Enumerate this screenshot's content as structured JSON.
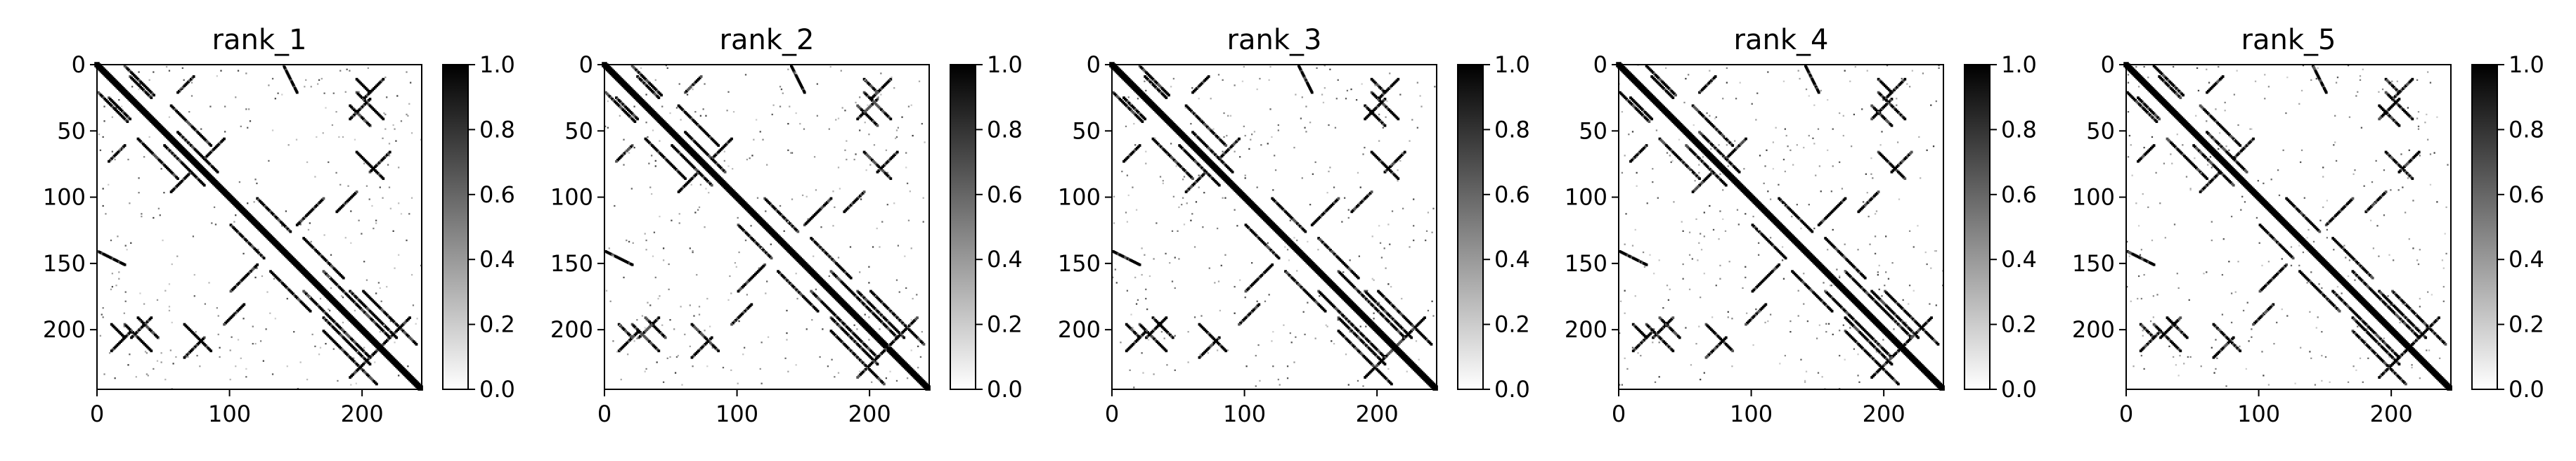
{
  "figure": {
    "panel_count": 5
  },
  "chart_data": [
    {
      "type": "heatmap",
      "title": "rank_1",
      "colormap": "Greys",
      "vmin": 0.0,
      "vmax": 1.0,
      "xlim": [
        0,
        245
      ],
      "ylim": [
        245,
        0
      ],
      "x_ticks": [
        0,
        100,
        200
      ],
      "y_ticks": [
        0,
        50,
        100,
        150,
        200
      ],
      "colorbar_ticks": [
        "0.0",
        "0.2",
        "0.4",
        "0.6",
        "0.8",
        "1.0"
      ],
      "x_tick_labels": [
        "0",
        "100",
        "200"
      ],
      "y_tick_labels": [
        "0",
        "50",
        "100",
        "150",
        "200"
      ],
      "matrix_size": 245,
      "description_of_values": "contact map; diagonal band plus off-diagonal contact segments near (20-40,0-40),(60-90,30-80),(140-160,0-20),(150-210,130-180),(200-240,180-220)"
    },
    {
      "type": "heatmap",
      "title": "rank_2",
      "colormap": "Greys",
      "vmin": 0.0,
      "vmax": 1.0,
      "xlim": [
        0,
        245
      ],
      "ylim": [
        245,
        0
      ],
      "x_ticks": [
        0,
        100,
        200
      ],
      "y_ticks": [
        0,
        50,
        100,
        150,
        200
      ],
      "colorbar_ticks": [
        "0.0",
        "0.2",
        "0.4",
        "0.6",
        "0.8",
        "1.0"
      ],
      "x_tick_labels": [
        "0",
        "100",
        "200"
      ],
      "y_tick_labels": [
        "0",
        "50",
        "100",
        "150",
        "200"
      ],
      "matrix_size": 245
    },
    {
      "type": "heatmap",
      "title": "rank_3",
      "colormap": "Greys",
      "vmin": 0.0,
      "vmax": 1.0,
      "xlim": [
        0,
        245
      ],
      "ylim": [
        245,
        0
      ],
      "x_ticks": [
        0,
        100,
        200
      ],
      "y_ticks": [
        0,
        50,
        100,
        150,
        200
      ],
      "colorbar_ticks": [
        "0.0",
        "0.2",
        "0.4",
        "0.6",
        "0.8",
        "1.0"
      ],
      "x_tick_labels": [
        "0",
        "100",
        "200"
      ],
      "y_tick_labels": [
        "0",
        "50",
        "100",
        "150",
        "200"
      ],
      "matrix_size": 245
    },
    {
      "type": "heatmap",
      "title": "rank_4",
      "colormap": "Greys",
      "vmin": 0.0,
      "vmax": 1.0,
      "xlim": [
        0,
        245
      ],
      "ylim": [
        245,
        0
      ],
      "x_ticks": [
        0,
        100,
        200
      ],
      "y_ticks": [
        0,
        50,
        100,
        150,
        200
      ],
      "colorbar_ticks": [
        "0.0",
        "0.2",
        "0.4",
        "0.6",
        "0.8",
        "1.0"
      ],
      "x_tick_labels": [
        "0",
        "100",
        "200"
      ],
      "y_tick_labels": [
        "0",
        "50",
        "100",
        "150",
        "200"
      ],
      "matrix_size": 245
    },
    {
      "type": "heatmap",
      "title": "rank_5",
      "colormap": "Greys",
      "vmin": 0.0,
      "vmax": 1.0,
      "xlim": [
        0,
        245
      ],
      "ylim": [
        245,
        0
      ],
      "x_ticks": [
        0,
        100,
        200
      ],
      "y_ticks": [
        0,
        50,
        100,
        150,
        200
      ],
      "colorbar_ticks": [
        "0.0",
        "0.2",
        "0.4",
        "0.6",
        "0.8",
        "1.0"
      ],
      "x_tick_labels": [
        "0",
        "100",
        "200"
      ],
      "y_tick_labels": [
        "0",
        "50",
        "100",
        "150",
        "200"
      ],
      "matrix_size": 245
    }
  ],
  "contacts": {
    "diagonal_band_width": 4,
    "segments": [
      {
        "from": [
          20,
          0
        ],
        "to": [
          42,
          22
        ],
        "dir": "anti"
      },
      {
        "from": [
          24,
          8
        ],
        "to": [
          40,
          24
        ],
        "dir": "diag"
      },
      {
        "from": [
          55,
          30
        ],
        "to": [
          85,
          60
        ],
        "dir": "anti"
      },
      {
        "from": [
          60,
          20
        ],
        "to": [
          72,
          8
        ],
        "dir": "anti"
      },
      {
        "from": [
          60,
          50
        ],
        "to": [
          90,
          80
        ],
        "dir": "diag"
      },
      {
        "from": [
          80,
          70
        ],
        "to": [
          95,
          55
        ],
        "dir": "anti"
      },
      {
        "from": [
          120,
          100
        ],
        "to": [
          145,
          125
        ],
        "dir": "diag"
      },
      {
        "from": [
          140,
          0
        ],
        "to": [
          150,
          20
        ],
        "dir": "diag"
      },
      {
        "from": [
          150,
          120
        ],
        "to": [
          170,
          100
        ],
        "dir": "anti"
      },
      {
        "from": [
          155,
          130
        ],
        "to": [
          185,
          160
        ],
        "dir": "diag"
      },
      {
        "from": [
          170,
          155
        ],
        "to": [
          195,
          180
        ],
        "dir": "diag"
      },
      {
        "from": [
          180,
          110
        ],
        "to": [
          195,
          95
        ],
        "dir": "anti"
      },
      {
        "from": [
          190,
          170
        ],
        "to": [
          225,
          205
        ],
        "dir": "anti"
      },
      {
        "from": [
          195,
          180
        ],
        "to": [
          220,
          205
        ],
        "dir": "diag"
      },
      {
        "from": [
          195,
          20
        ],
        "to": [
          215,
          40
        ],
        "dir": "diag"
      },
      {
        "from": [
          200,
          25
        ],
        "to": [
          215,
          10
        ],
        "dir": "anti"
      },
      {
        "from": [
          195,
          65
        ],
        "to": [
          215,
          85
        ],
        "dir": "diag"
      },
      {
        "from": [
          205,
          80
        ],
        "to": [
          220,
          65
        ],
        "dir": "anti"
      },
      {
        "from": [
          200,
          170
        ],
        "to": [
          240,
          210
        ],
        "dir": "diag"
      },
      {
        "from": [
          210,
          215
        ],
        "to": [
          235,
          190
        ],
        "dir": "anti"
      },
      {
        "from": [
          30,
          190
        ],
        "to": [
          45,
          205
        ],
        "dir": "diag"
      },
      {
        "from": [
          25,
          205
        ],
        "to": [
          40,
          190
        ],
        "dir": "anti"
      },
      {
        "from": [
          10,
          195
        ],
        "to": [
          20,
          205
        ],
        "dir": "diag"
      }
    ]
  }
}
